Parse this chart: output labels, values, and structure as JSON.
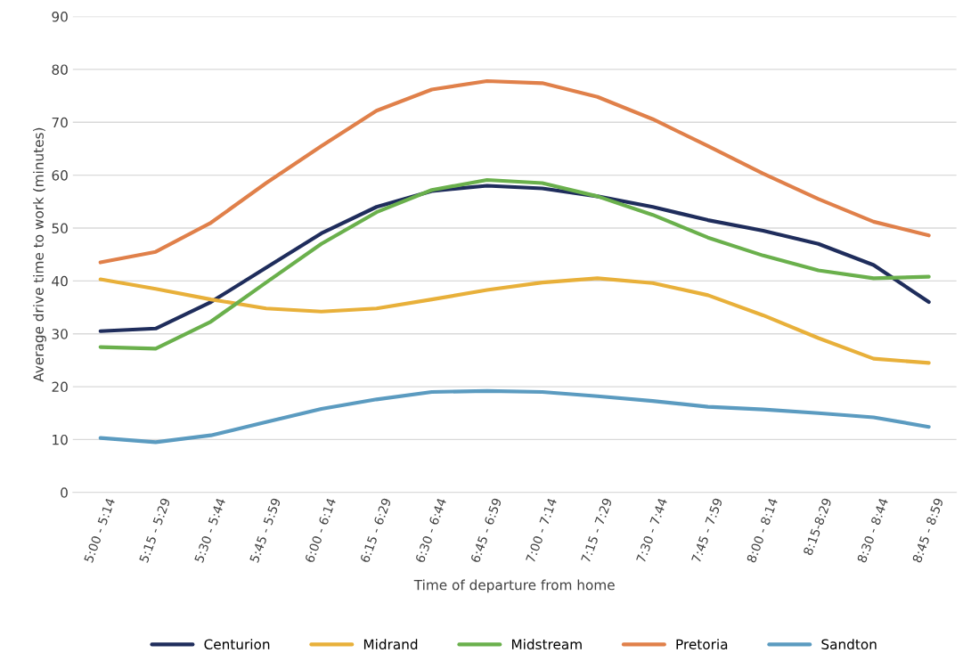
{
  "chart_data": {
    "type": "line",
    "xlabel": "Time of departure from home",
    "ylabel": "Average drive time to work (minutes)",
    "categories": [
      "5:00 - 5:14",
      "5:15 - 5:29",
      "5:30 - 5:44",
      "5:45 - 5:59",
      "6:00 - 6:14",
      "6:15 - 6:29",
      "6:30 - 6:44",
      "6:45 - 6:59",
      "7:00 - 7:14",
      "7:15 - 7:29",
      "7:30 - 7:44",
      "7:45 - 7:59",
      "8:00 - 8:14",
      "8:15-8:29",
      "8:30 - 8:44",
      "8:45 - 8:59"
    ],
    "series": [
      {
        "name": "Centurion",
        "color": "#1f2d5c",
        "values": [
          30.5,
          31,
          36,
          42.5,
          49,
          54,
          57,
          58,
          57.5,
          56,
          54,
          51.5,
          49.5,
          47,
          43,
          36
        ]
      },
      {
        "name": "Midrand",
        "color": "#e8b03a",
        "values": [
          40.3,
          38.5,
          36.5,
          34.8,
          34.2,
          34.8,
          36.5,
          38.3,
          39.7,
          40.5,
          39.6,
          37.3,
          33.5,
          29.2,
          25.3,
          24.5
        ]
      },
      {
        "name": "Midstream",
        "color": "#6ab04c",
        "values": [
          27.5,
          27.2,
          32.3,
          39.7,
          47,
          53,
          57.2,
          59.1,
          58.5,
          56,
          52.5,
          48.2,
          44.8,
          42,
          40.5,
          40.8
        ]
      },
      {
        "name": "Pretoria",
        "color": "#e0804a",
        "values": [
          43.5,
          45.5,
          51,
          58.5,
          65.5,
          72.2,
          76.2,
          77.8,
          77.4,
          74.8,
          70.6,
          65.5,
          60.3,
          55.5,
          51.2,
          48.6
        ]
      },
      {
        "name": "Sandton",
        "color": "#5b9bc0",
        "values": [
          10.3,
          9.5,
          10.8,
          13.3,
          15.8,
          17.6,
          19,
          19.2,
          19,
          18.2,
          17.3,
          16.2,
          15.7,
          15,
          14.2,
          12.4
        ]
      }
    ],
    "ylim": [
      0,
      90
    ],
    "yticks": [
      0,
      10,
      20,
      30,
      40,
      50,
      60,
      70,
      80,
      90
    ],
    "grid": "y",
    "legend": "bottom",
    "marker": "none",
    "line_style": "solid"
  }
}
